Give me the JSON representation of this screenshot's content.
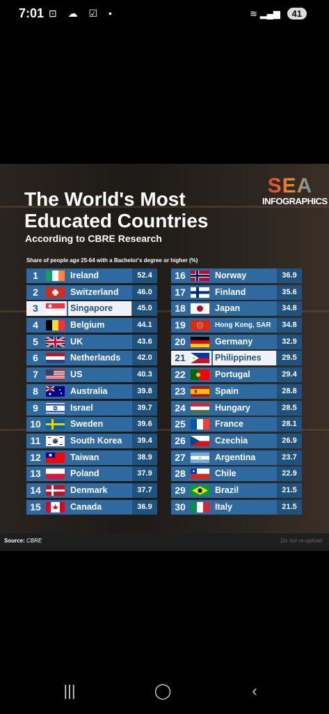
{
  "status_bar": {
    "time": "7:01",
    "battery": "41"
  },
  "infographic": {
    "title": "The World's Most Educated Countries",
    "subtitle": "According to CBRE Research",
    "caption": "Share of people age 25-64 with a Bachelor's degree or higher (%)",
    "logo_top": "SEA",
    "logo_bottom": "INFOGRAPHICS",
    "source_label": "Source:",
    "source_value": "CBRE",
    "notice": "Do not re-upload",
    "countries_left": [
      {
        "rank": "1",
        "name": "Ireland",
        "value": "52.4"
      },
      {
        "rank": "2",
        "name": "Switzerland",
        "value": "46.0"
      },
      {
        "rank": "3",
        "name": "Singapore",
        "value": "45.0"
      },
      {
        "rank": "4",
        "name": "Belgium",
        "value": "44.1"
      },
      {
        "rank": "5",
        "name": "UK",
        "value": "43.6"
      },
      {
        "rank": "6",
        "name": "Netherlands",
        "value": "42.0"
      },
      {
        "rank": "7",
        "name": "US",
        "value": "40.3"
      },
      {
        "rank": "8",
        "name": "Australia",
        "value": "39.8"
      },
      {
        "rank": "9",
        "name": "Israel",
        "value": "39.7"
      },
      {
        "rank": "10",
        "name": "Sweden",
        "value": "39.6"
      },
      {
        "rank": "11",
        "name": "South Korea",
        "value": "39.4"
      },
      {
        "rank": "12",
        "name": "Taiwan",
        "value": "38.9"
      },
      {
        "rank": "13",
        "name": "Poland",
        "value": "37.9"
      },
      {
        "rank": "14",
        "name": "Denmark",
        "value": "37.7"
      },
      {
        "rank": "15",
        "name": "Canada",
        "value": "36.9"
      }
    ],
    "countries_right": [
      {
        "rank": "16",
        "name": "Norway",
        "value": "36.9"
      },
      {
        "rank": "17",
        "name": "Finland",
        "value": "35.6"
      },
      {
        "rank": "18",
        "name": "Japan",
        "value": "34.8"
      },
      {
        "rank": "19",
        "name": "Hong Kong, SAR",
        "value": "34.8"
      },
      {
        "rank": "20",
        "name": "Germany",
        "value": "32.9"
      },
      {
        "rank": "21",
        "name": "Philippines",
        "value": "29.5"
      },
      {
        "rank": "22",
        "name": "Portugal",
        "value": "29.4"
      },
      {
        "rank": "23",
        "name": "Spain",
        "value": "28.8"
      },
      {
        "rank": "24",
        "name": "Hungary",
        "value": "28.5"
      },
      {
        "rank": "25",
        "name": "France",
        "value": "28.1"
      },
      {
        "rank": "26",
        "name": "Czechia",
        "value": "26.9"
      },
      {
        "rank": "27",
        "name": "Argentina",
        "value": "23.7"
      },
      {
        "rank": "28",
        "name": "Chile",
        "value": "22.9"
      },
      {
        "rank": "29",
        "name": "Brazil",
        "value": "21.5"
      },
      {
        "rank": "30",
        "name": "Italy",
        "value": "21.5"
      }
    ]
  }
}
